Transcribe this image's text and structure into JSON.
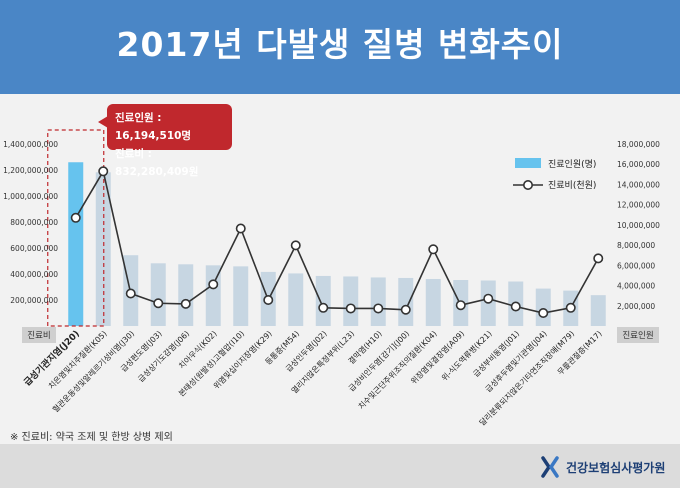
{
  "header": {
    "title": "2017년 다발생 질병 변화추이"
  },
  "footnote": "※ 진료비: 약국 조제 및 한방 상병 제외",
  "logo": {
    "text": "건강보험심사평가원"
  },
  "callout": {
    "patients_line": "진료인원 : 16,194,510명",
    "cost_line": "진료비 : 832,280,409원"
  },
  "chart_data": {
    "type": "bar+line",
    "categories": [
      "급성기관지염(J20)",
      "치은염및치주질환(K05)",
      "혈관운동성및알레르기성비염(J30)",
      "급성편도염(J03)",
      "급성상기도감염(J06)",
      "치아우식(K02)",
      "본태성(원발성)고혈압(I10)",
      "위염및십이지장염(K29)",
      "등통증(M54)",
      "급성인두염(J02)",
      "열리지않은특정부위(L23)",
      "결막염(H10)",
      "급성비인두염[감기](J00)",
      "치수및근단주위조직의질환(K04)",
      "위장염및결장염(A09)",
      "위-식도역류병(K21)",
      "급성부비동염(J01)",
      "급성후두염및기관염(J04)",
      "달리분류되지않은기타연조직장애(M79)",
      "무릎관절증(M17)"
    ],
    "highlight_index": 0,
    "series": [
      {
        "name": "진료인원(명)",
        "axis": "right",
        "values": [
          16194510,
          15200000,
          7000000,
          6200000,
          6100000,
          6000000,
          5900000,
          5350000,
          5200000,
          4950000,
          4900000,
          4800000,
          4750000,
          4650000,
          4550000,
          4500000,
          4400000,
          3700000,
          3500000,
          3050000
        ]
      },
      {
        "name": "진료비(천원)",
        "axis": "left",
        "values": [
          832280409,
          1190000000,
          250000000,
          175000000,
          170000000,
          320000000,
          750000000,
          200000000,
          620000000,
          140000000,
          135000000,
          135000000,
          125000000,
          590000000,
          160000000,
          210000000,
          150000000,
          100000000,
          140000000,
          520000000
        ]
      }
    ],
    "left_axis": {
      "label": "진료비",
      "ylim": [
        0,
        1400000000
      ],
      "ticks": [
        "1,400,000,000",
        "1,200,000,000",
        "1,000,000,000",
        "800,000,000",
        "600,000,000",
        "400,000,000",
        "200,000,000"
      ]
    },
    "right_axis": {
      "label": "진료인원",
      "ylim": [
        0,
        18000000
      ],
      "ticks": [
        "18,000,000",
        "16,000,000",
        "14,000,000",
        "12,000,000",
        "10,000,000",
        "8,000,000",
        "6,000,000",
        "4,000,000",
        "2,000,000"
      ]
    },
    "colors": {
      "highlight_bar": "#66c3ee",
      "bar": "#c7d6e2",
      "line": "#333333",
      "marker_fill": "#ffffff",
      "highlight_box": "#c0282d"
    },
    "legend_position": "top-right",
    "grid": false
  }
}
